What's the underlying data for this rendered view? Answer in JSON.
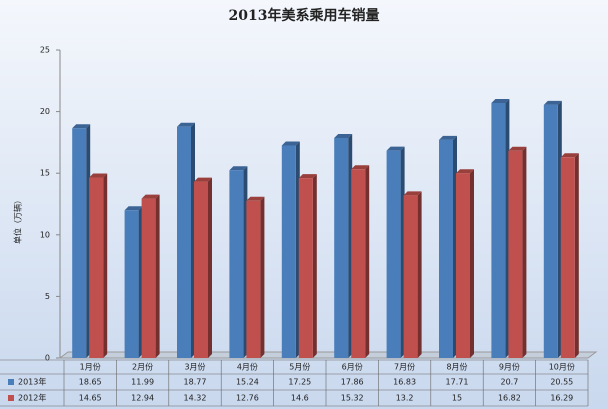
{
  "chart_data": {
    "type": "bar",
    "title": "2013年美系乘用车销量",
    "y_label": "单位（万辆）",
    "categories": [
      "1月份",
      "2月份",
      "3月份",
      "4月份",
      "5月份",
      "6月份",
      "7月份",
      "8月份",
      "9月份",
      "10月份"
    ],
    "series": [
      {
        "name": "2013年",
        "color": "#4a7ebb",
        "values": [
          18.65,
          11.99,
          18.77,
          15.24,
          17.25,
          17.86,
          16.83,
          17.71,
          20.7,
          20.55
        ]
      },
      {
        "name": "2012年",
        "color": "#c0504d",
        "values": [
          14.65,
          12.94,
          14.32,
          12.76,
          14.6,
          15.32,
          13.2,
          15,
          16.82,
          16.29
        ]
      }
    ],
    "ylim": [
      0,
      25
    ],
    "yticks": [
      0,
      5,
      10,
      15,
      20,
      25
    ]
  }
}
